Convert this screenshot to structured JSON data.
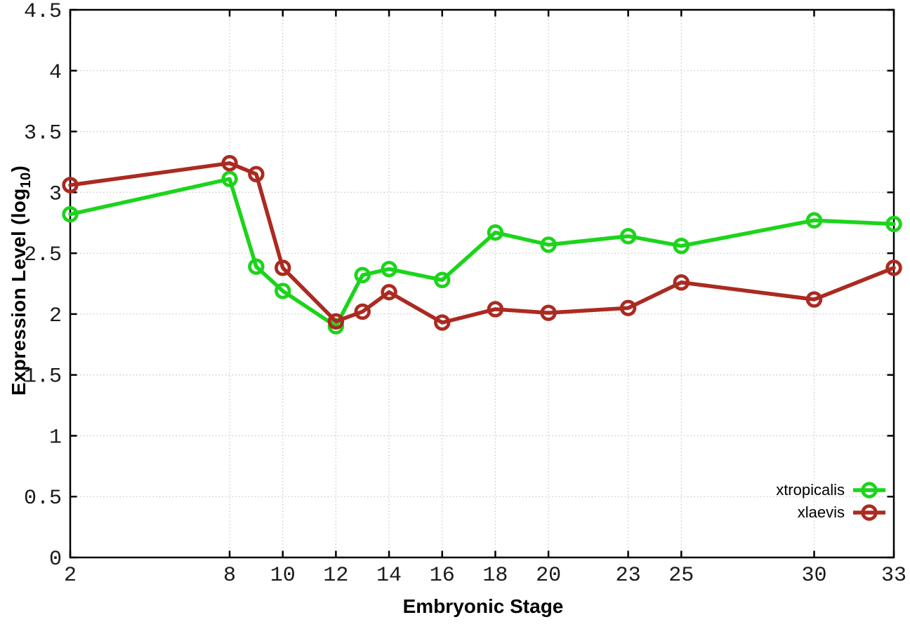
{
  "chart_data": {
    "type": "line",
    "title": "",
    "xlabel": "Embryonic Stage",
    "ylabel": "Expression Level (log10)",
    "ylabel_parts": {
      "prefix": "Expression Level (log",
      "subscript": "10",
      "suffix": ")"
    },
    "xlim": [
      2,
      33
    ],
    "ylim": [
      0,
      4.5
    ],
    "grid": true,
    "legend_position": "bottom-right",
    "x_ticks": {
      "values": [
        2,
        8,
        10,
        12,
        14,
        16,
        18,
        20,
        23,
        25,
        30,
        33
      ],
      "labels": [
        "2",
        "8",
        "10",
        "12",
        "14",
        "16",
        "18",
        "20",
        "23",
        "25",
        "30",
        "33"
      ]
    },
    "y_ticks": {
      "values": [
        0,
        0.5,
        1,
        1.5,
        2,
        2.5,
        3,
        3.5,
        4,
        4.5
      ],
      "labels": [
        "0",
        "0.5",
        "1",
        "1.5",
        "2",
        "2.5",
        "3",
        "3.5",
        "4",
        "4.5"
      ]
    },
    "x": [
      2,
      8,
      9,
      10,
      12,
      13,
      14,
      16,
      18,
      20,
      23,
      25,
      30,
      33
    ],
    "series": [
      {
        "name": "xtropicalis",
        "color": "#1cd41c",
        "marker": "open-circle",
        "values": [
          2.82,
          3.11,
          2.39,
          2.19,
          1.9,
          2.32,
          2.37,
          2.28,
          2.67,
          2.57,
          2.64,
          2.56,
          2.77,
          2.74
        ]
      },
      {
        "name": "xlaevis",
        "color": "#ab2a21",
        "marker": "open-circle",
        "values": [
          3.06,
          3.24,
          3.15,
          2.38,
          1.94,
          2.02,
          2.18,
          1.93,
          2.04,
          2.01,
          2.05,
          2.26,
          2.12,
          2.38
        ]
      }
    ],
    "style": {
      "grid_color": "#c8c8c8",
      "axis_color": "#000000",
      "tick_label_color": "#1a1a1a"
    }
  }
}
